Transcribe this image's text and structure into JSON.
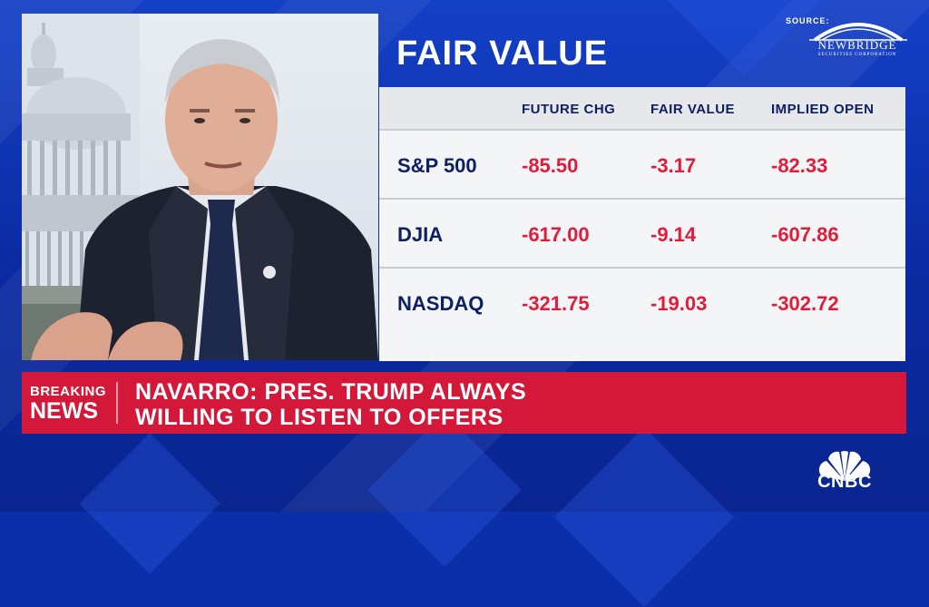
{
  "board": {
    "title": "FAIR VALUE",
    "source_label": "SOURCE:",
    "source_name": "NEWBRIDGE",
    "source_sub": "SECURITIES CORPORATION",
    "columns": [
      "FUTURE CHG",
      "FAIR VALUE",
      "IMPLIED OPEN"
    ],
    "rows": [
      {
        "name": "S&P 500",
        "future_chg": "-85.50",
        "fair_value": "-3.17",
        "implied_open": "-82.33"
      },
      {
        "name": "DJIA",
        "future_chg": "-617.00",
        "fair_value": "-9.14",
        "implied_open": "-607.86"
      },
      {
        "name": "NASDAQ",
        "future_chg": "-321.75",
        "fair_value": "-19.03",
        "implied_open": "-302.72"
      }
    ]
  },
  "banner": {
    "label_line1": "BREAKING",
    "label_line2": "NEWS",
    "headline_line1": "NAVARRO: PRES. TRUMP ALWAYS",
    "headline_line2": "WILLING TO LISTEN TO OFFERS"
  },
  "network": {
    "name": "CNBC"
  },
  "colors": {
    "background": "#0b2fa8",
    "banner": "#d3183a",
    "table_text": "#0d2061",
    "negative_value": "#e11c3b"
  }
}
